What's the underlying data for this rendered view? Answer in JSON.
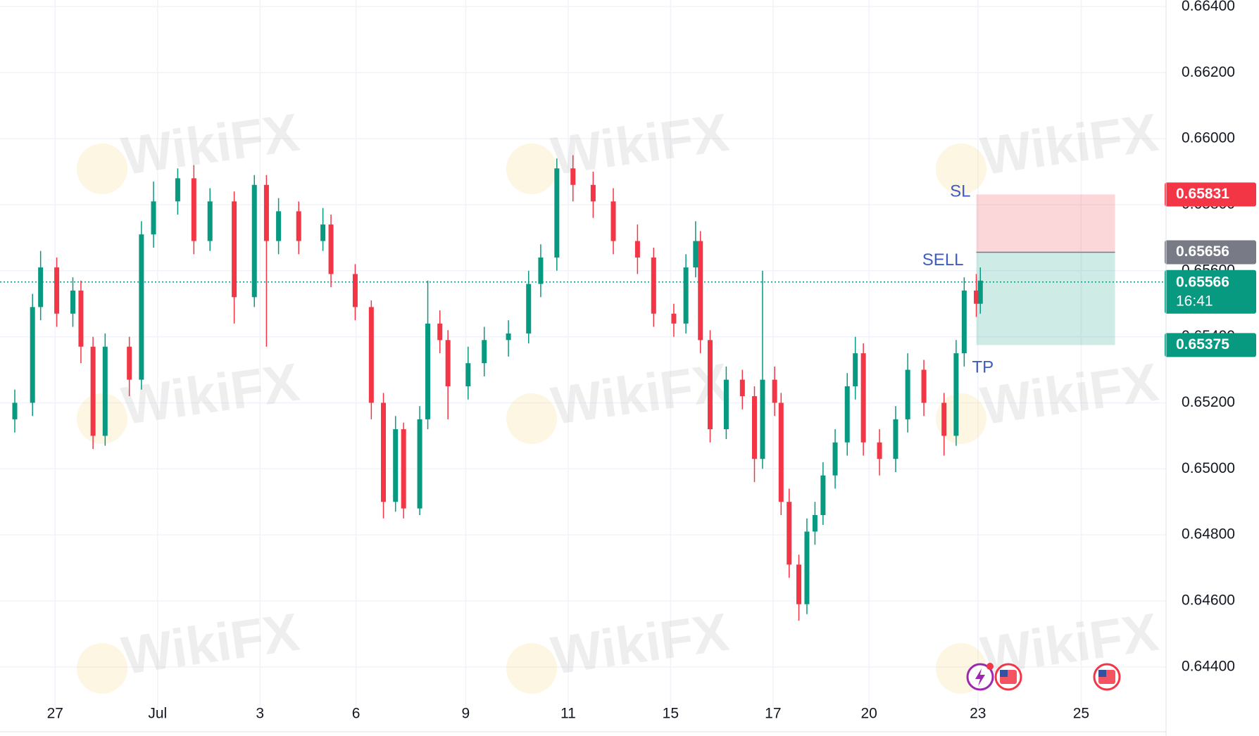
{
  "chart_data": {
    "type": "candlestick",
    "watermark": "WikiFX",
    "x": [
      0,
      2.2,
      3.2,
      5.2,
      7.2,
      8.2,
      9.7,
      11.2,
      14.2,
      15.7,
      17.2,
      20.2,
      22.2,
      24.2,
      27.2,
      29.7,
      31.2,
      32.7,
      35.2,
      38.2,
      39.2,
      42.2,
      44.2,
      45.7,
      47.2,
      48.2,
      50.2,
      51.2,
      52.7,
      53.7,
      56.2,
      58.2,
      61.2,
      63.7,
      65.2,
      67.2,
      69.2,
      71.7,
      74.2,
      77.2,
      79.2,
      81.7,
      83.2,
      84.4,
      85,
      86.2,
      88.2,
      90.2,
      91.7,
      92.7,
      94.2,
      95,
      96,
      97.2,
      98.2,
      99.2,
      100.2,
      101.7,
      103.2,
      104.2,
      105.2,
      107.2,
      109.2,
      110.7,
      112.7,
      115.2,
      116.7,
      117.7,
      119.2,
      119.7
    ],
    "open": [
      0.6515,
      0.652,
      0.6549,
      0.6561,
      0.6547,
      0.6554,
      0.6537,
      0.651,
      0.6537,
      0.6527,
      0.6571,
      0.6581,
      0.6588,
      0.6569,
      0.6581,
      0.6552,
      0.6586,
      0.6569,
      0.6578,
      0.6569,
      0.6574,
      0.6559,
      0.6549,
      0.652,
      0.649,
      0.6512,
      0.6488,
      0.6515,
      0.6544,
      0.6539,
      0.6525,
      0.6532,
      0.6539,
      0.6541,
      0.6556,
      0.6564,
      0.6591,
      0.6586,
      0.6581,
      0.6569,
      0.6564,
      0.6547,
      0.6544,
      0.6561,
      0.6569,
      0.6539,
      0.6512,
      0.6527,
      0.6522,
      0.6503,
      0.6527,
      0.652,
      0.649,
      0.6471,
      0.6459,
      0.6481,
      0.6486,
      0.6498,
      0.6508,
      0.6525,
      0.6535,
      0.6508,
      0.6503,
      0.6515,
      0.653,
      0.652,
      0.651,
      0.6535,
      0.6554,
      0.655
    ],
    "high": [
      0.6524,
      0.6553,
      0.6566,
      0.6564,
      0.6558,
      0.6557,
      0.654,
      0.6541,
      0.654,
      0.6575,
      0.6587,
      0.6591,
      0.6592,
      0.6585,
      0.6584,
      0.6589,
      0.6589,
      0.6582,
      0.6581,
      0.6579,
      0.6577,
      0.6562,
      0.6551,
      0.6523,
      0.6516,
      0.6514,
      0.6519,
      0.6557,
      0.6548,
      0.6542,
      0.6537,
      0.6543,
      0.6545,
      0.656,
      0.6568,
      0.6594,
      0.6595,
      0.659,
      0.6585,
      0.6574,
      0.6567,
      0.655,
      0.6565,
      0.6575,
      0.6572,
      0.6542,
      0.6531,
      0.653,
      0.6525,
      0.656,
      0.6531,
      0.6523,
      0.6494,
      0.6474,
      0.6485,
      0.649,
      0.6502,
      0.6512,
      0.6529,
      0.654,
      0.6538,
      0.6512,
      0.6519,
      0.6535,
      0.6533,
      0.6523,
      0.6539,
      0.6558,
      0.6559,
      0.6561
    ],
    "low": [
      0.6511,
      0.6516,
      0.6545,
      0.6543,
      0.6543,
      0.6532,
      0.6506,
      0.6507,
      0.6522,
      0.6524,
      0.6567,
      0.6577,
      0.6565,
      0.6566,
      0.6544,
      0.6549,
      0.6537,
      0.6565,
      0.6565,
      0.6566,
      0.6555,
      0.6545,
      0.6515,
      0.6485,
      0.6487,
      0.6485,
      0.6486,
      0.6512,
      0.6535,
      0.6515,
      0.6521,
      0.6528,
      0.6534,
      0.6538,
      0.6552,
      0.656,
      0.6581,
      0.6576,
      0.6565,
      0.6559,
      0.6543,
      0.654,
      0.6541,
      0.6558,
      0.6535,
      0.6508,
      0.6509,
      0.6518,
      0.6496,
      0.65,
      0.6516,
      0.6486,
      0.6467,
      0.6454,
      0.6456,
      0.6477,
      0.6483,
      0.6494,
      0.6504,
      0.6521,
      0.6504,
      0.6498,
      0.6499,
      0.6511,
      0.6516,
      0.6504,
      0.6507,
      0.6531,
      0.6546,
      0.6547
    ],
    "close": [
      0.652,
      0.6549,
      0.6561,
      0.6547,
      0.6554,
      0.6537,
      0.651,
      0.6537,
      0.6527,
      0.6571,
      0.6581,
      0.6588,
      0.6569,
      0.6581,
      0.6552,
      0.6586,
      0.6569,
      0.6578,
      0.6569,
      0.6574,
      0.6559,
      0.6549,
      0.652,
      0.649,
      0.6512,
      0.6488,
      0.6515,
      0.6544,
      0.6539,
      0.6525,
      0.6532,
      0.6539,
      0.6541,
      0.6556,
      0.6564,
      0.6591,
      0.6586,
      0.6581,
      0.6569,
      0.6564,
      0.6547,
      0.6544,
      0.6561,
      0.6569,
      0.6539,
      0.6512,
      0.6527,
      0.6522,
      0.6503,
      0.6527,
      0.652,
      0.649,
      0.6471,
      0.6459,
      0.6481,
      0.6486,
      0.6498,
      0.6508,
      0.6525,
      0.6535,
      0.6508,
      0.6503,
      0.6515,
      0.653,
      0.652,
      0.651,
      0.6535,
      0.6554,
      0.655,
      0.6557
    ],
    "up_color": "#089981",
    "down_color": "#f23645",
    "xlim": [
      0,
      142.2
    ],
    "xticks": [
      {
        "value": 5,
        "label": "27"
      },
      {
        "value": 17.7,
        "label": "Jul"
      },
      {
        "value": 30.4,
        "label": "3"
      },
      {
        "value": 42.3,
        "label": "6"
      },
      {
        "value": 55.9,
        "label": "9"
      },
      {
        "value": 68.6,
        "label": "11"
      },
      {
        "value": 81.3,
        "label": "15"
      },
      {
        "value": 94,
        "label": "17"
      },
      {
        "value": 105.9,
        "label": "20"
      },
      {
        "value": 119.4,
        "label": "23"
      },
      {
        "value": 132.2,
        "label": "25"
      }
    ],
    "ylim": [
      0.6421,
      0.6642
    ],
    "yticks": [
      {
        "value": 0.644,
        "label": "0.64400"
      },
      {
        "value": 0.646,
        "label": "0.64600"
      },
      {
        "value": 0.648,
        "label": "0.64800"
      },
      {
        "value": 0.65,
        "label": "0.65000"
      },
      {
        "value": 0.652,
        "label": "0.65200"
      },
      {
        "value": 0.654,
        "label": "0.65400"
      },
      {
        "value": 0.656,
        "label": "0.65600"
      },
      {
        "value": 0.658,
        "label": "0.65800"
      },
      {
        "value": 0.66,
        "label": "0.66000"
      },
      {
        "value": 0.662,
        "label": "0.66200"
      },
      {
        "value": 0.664,
        "label": "0.66400"
      }
    ],
    "grid": true,
    "last_price": 0.65566,
    "countdown": "16:41",
    "position": {
      "side": "SELL",
      "entry": 0.65656,
      "stop_loss": 0.65831,
      "take_profit": 0.65375,
      "stop_label": "SL",
      "target_label": "TP",
      "x_start": 119.2,
      "x_end": 136.4
    }
  }
}
